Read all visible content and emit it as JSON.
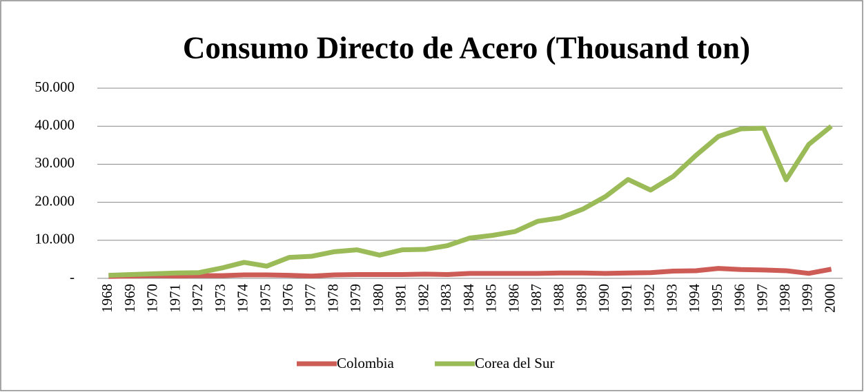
{
  "chart_data": {
    "type": "line",
    "title": "Consumo Directo de Acero (Thousand ton)",
    "categories": [
      "1968",
      "1969",
      "1970",
      "1971",
      "1972",
      "1973",
      "1974",
      "1975",
      "1976",
      "1977",
      "1978",
      "1979",
      "1980",
      "1981",
      "1982",
      "1983",
      "1984",
      "1985",
      "1986",
      "1987",
      "1988",
      "1989",
      "1990",
      "1991",
      "1992",
      "1993",
      "1994",
      "1995",
      "1996",
      "1997",
      "1998",
      "1999",
      "2000"
    ],
    "series": [
      {
        "name": "Colombia",
        "color": "#cd5c57",
        "values": [
          500,
          600,
          700,
          600,
          700,
          700,
          900,
          900,
          800,
          600,
          900,
          1000,
          1000,
          1000,
          1100,
          1000,
          1300,
          1300,
          1300,
          1300,
          1400,
          1400,
          1300,
          1400,
          1500,
          1900,
          2000,
          2600,
          2300,
          2200,
          2000,
          1300,
          2400
        ]
      },
      {
        "name": "Corea del Sur",
        "color": "#9bbb59",
        "values": [
          800,
          1000,
          1200,
          1400,
          1500,
          2700,
          4200,
          3200,
          5500,
          5800,
          7000,
          7500,
          6100,
          7500,
          7600,
          8600,
          10600,
          11300,
          12300,
          15000,
          15900,
          18200,
          21500,
          26000,
          23200,
          26800,
          32300,
          37300,
          39300,
          39500,
          25900,
          35200,
          40000
        ]
      }
    ],
    "ylim": [
      0,
      50000
    ],
    "yticks": [
      {
        "value": 0,
        "label": "-"
      },
      {
        "value": 10000,
        "label": "10.000"
      },
      {
        "value": 20000,
        "label": "20.000"
      },
      {
        "value": 30000,
        "label": "30.000"
      },
      {
        "value": 40000,
        "label": "40.000"
      },
      {
        "value": 50000,
        "label": "50.000"
      }
    ],
    "grid": true,
    "legend": "bottom"
  }
}
